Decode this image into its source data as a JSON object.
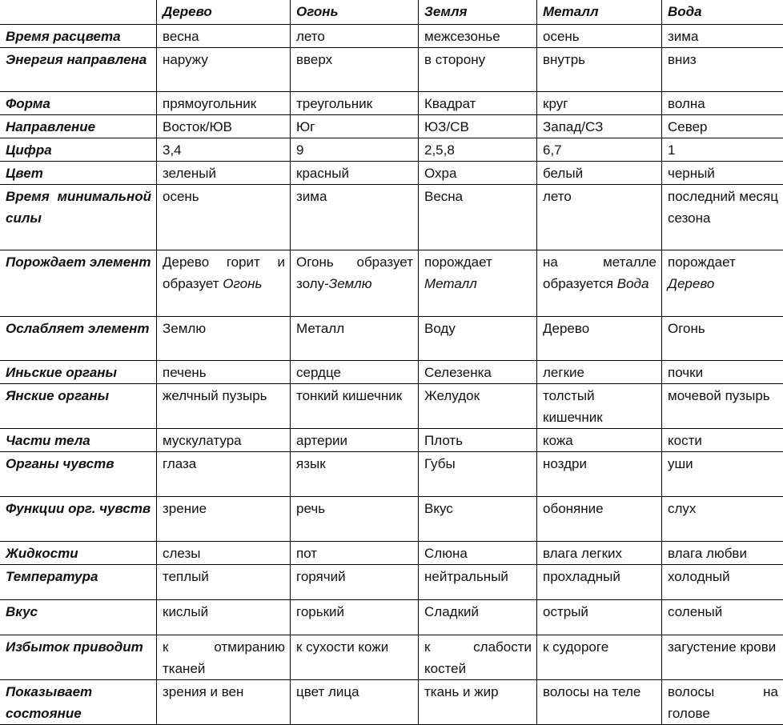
{
  "header": [
    "",
    "Дерево",
    "Огонь",
    "Земля",
    "Металл",
    "Вода"
  ],
  "rows": [
    {
      "label": "Время расцвета",
      "cells": [
        "весна",
        "лето",
        "межсезонье",
        "осень",
        "зима"
      ]
    },
    {
      "label": "Энергия направлена",
      "cells": [
        "наружу",
        "вверх",
        "в сторону",
        "внутрь",
        "вниз"
      ]
    },
    {
      "label": "Форма",
      "cells": [
        "прямоугольник",
        "треугольник",
        "Квадрат",
        "круг",
        "волна"
      ]
    },
    {
      "label": "Направление",
      "cells": [
        "Восток/ЮВ",
        "Юг",
        "ЮЗ/СВ",
        "Запад/СЗ",
        "Север"
      ]
    },
    {
      "label": "Цифра",
      "cells": [
        "3,4",
        "9",
        "2,5,8",
        "6,7",
        "1"
      ]
    },
    {
      "label": "Цвет",
      "cells": [
        "зеленый",
        "красный",
        "Охра",
        "белый",
        "черный"
      ]
    },
    {
      "label": "Время минимальной силы",
      "cells": [
        "осень",
        "зима",
        "Весна",
        "лето",
        "последний месяц сезона"
      ]
    },
    {
      "label": "Порождает элемент",
      "cells": [
        [
          {
            "text": "Дерево горит и образует "
          },
          {
            "text": "Огонь",
            "italic": true
          }
        ],
        [
          {
            "text": "Огонь образует золу-"
          },
          {
            "text": "Землю",
            "italic": true
          }
        ],
        [
          {
            "text": " порождает "
          },
          {
            "text": "Металл",
            "italic": true
          }
        ],
        [
          {
            "text": "на металле образуется "
          },
          {
            "text": "Вода",
            "italic": true
          }
        ],
        [
          {
            "text": "порождает "
          },
          {
            "text": "Дерево",
            "italic": true
          }
        ]
      ]
    },
    {
      "label": "Ослабляет элемент",
      "cells": [
        "Землю",
        "Металл",
        "Воду",
        "Дерево",
        "Огонь"
      ]
    },
    {
      "label": "Иньские органы",
      "cells": [
        "печень",
        "сердце",
        "Селезенка",
        "легкие",
        "почки"
      ]
    },
    {
      "label": "Янские органы",
      "cells": [
        "желчный пузырь",
        "тонкий кишечник",
        "Желудок",
        "толстый кишечник",
        "мочевой пузырь"
      ]
    },
    {
      "label": "Части тела",
      "cells": [
        "мускулатура",
        "артерии",
        "Плоть",
        "кожа",
        "кости"
      ]
    },
    {
      "label": "Органы чувств",
      "cells": [
        "глаза",
        "язык",
        "Губы",
        "ноздри",
        "уши"
      ]
    },
    {
      "label": "Функции орг. чувств",
      "cells": [
        "зрение",
        "речь",
        "Вкус",
        "обоняние",
        "слух"
      ]
    },
    {
      "label": "Жидкости",
      "cells": [
        "слезы",
        "пот",
        "Слюна",
        "влага легких",
        "влага любви"
      ]
    },
    {
      "label": "Температура",
      "cells": [
        "теплый",
        "горячий",
        "нейтральный",
        "прохладный",
        "холодный"
      ]
    },
    {
      "label": "Вкус",
      "cells": [
        "кислый",
        "горький",
        "Сладкий",
        "острый",
        "соленый"
      ]
    },
    {
      "label": "Избыток приводит",
      "cells": [
        "к отмиранию тканей",
        " к сухости кожи",
        "к слабости костей",
        "к судороге",
        "загустение крови"
      ]
    },
    {
      "label": "Показывает состояние",
      "cells": [
        "зрения и вен",
        "цвет лица",
        "ткань и жир",
        "волосы на теле",
        "волосы на голове"
      ]
    }
  ]
}
